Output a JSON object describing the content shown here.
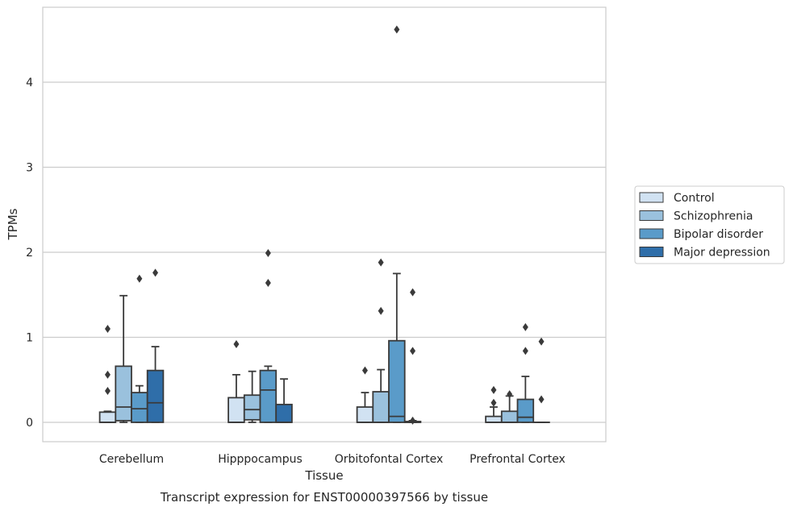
{
  "chart_data": {
    "type": "boxplot",
    "title": "",
    "caption": "Transcript expression for ENST00000397566 by tissue",
    "xlabel": "Tissue",
    "ylabel": "TPMs",
    "ylim": [
      -0.22,
      4.87
    ],
    "yticks": [
      0,
      1,
      2,
      3,
      4
    ],
    "grid": "horizontal",
    "legend_position": "right",
    "categories": [
      "Cerebellum",
      "Hipppocampus",
      "Orbitofontal Cortex",
      "Prefrontal Cortex"
    ],
    "series": [
      {
        "name": "Control",
        "color": "#d1e2f2",
        "boxes": [
          {
            "q1": 0.0,
            "median": 0.0,
            "q3": 0.12,
            "whisker_low": 0.0,
            "whisker_high": 0.13,
            "outliers": [
              0.37,
              0.56,
              1.1
            ]
          },
          {
            "q1": 0.0,
            "median": 0.0,
            "q3": 0.29,
            "whisker_low": 0.0,
            "whisker_high": 0.56,
            "outliers": [
              0.92
            ]
          },
          {
            "q1": 0.0,
            "median": 0.0,
            "q3": 0.18,
            "whisker_low": 0.0,
            "whisker_high": 0.35,
            "outliers": [
              0.61
            ]
          },
          {
            "q1": 0.0,
            "median": 0.0,
            "q3": 0.07,
            "whisker_low": 0.0,
            "whisker_high": 0.18,
            "outliers": [
              0.23,
              0.38
            ]
          }
        ]
      },
      {
        "name": "Schizophrenia",
        "color": "#9ac1dd",
        "boxes": [
          {
            "q1": 0.02,
            "median": 0.18,
            "q3": 0.66,
            "whisker_low": 0.0,
            "whisker_high": 1.49,
            "outliers": []
          },
          {
            "q1": 0.03,
            "median": 0.15,
            "q3": 0.32,
            "whisker_low": 0.0,
            "whisker_high": 0.6,
            "outliers": []
          },
          {
            "q1": 0.0,
            "median": 0.0,
            "q3": 0.36,
            "whisker_low": 0.0,
            "whisker_high": 0.62,
            "outliers": [
              1.31,
              1.88
            ]
          },
          {
            "q1": 0.0,
            "median": 0.0,
            "q3": 0.13,
            "whisker_low": 0.0,
            "whisker_high": 0.31,
            "outliers": [
              0.33
            ]
          }
        ]
      },
      {
        "name": "Bipolar disorder",
        "color": "#5a9bc9",
        "boxes": [
          {
            "q1": 0.0,
            "median": 0.16,
            "q3": 0.35,
            "whisker_low": 0.0,
            "whisker_high": 0.43,
            "outliers": [
              1.69
            ]
          },
          {
            "q1": 0.0,
            "median": 0.38,
            "q3": 0.61,
            "whisker_low": 0.0,
            "whisker_high": 0.66,
            "outliers": [
              1.64,
              1.99
            ]
          },
          {
            "q1": 0.0,
            "median": 0.07,
            "q3": 0.96,
            "whisker_low": 0.0,
            "whisker_high": 1.75,
            "outliers": [
              4.62
            ]
          },
          {
            "q1": 0.0,
            "median": 0.06,
            "q3": 0.27,
            "whisker_low": 0.0,
            "whisker_high": 0.54,
            "outliers": [
              0.84,
              1.12
            ]
          }
        ]
      },
      {
        "name": "Major depression",
        "color": "#2f6ea9",
        "boxes": [
          {
            "q1": 0.0,
            "median": 0.23,
            "q3": 0.61,
            "whisker_low": 0.0,
            "whisker_high": 0.89,
            "outliers": [
              1.76
            ]
          },
          {
            "q1": 0.0,
            "median": 0.0,
            "q3": 0.21,
            "whisker_low": 0.0,
            "whisker_high": 0.51,
            "outliers": []
          },
          {
            "q1": 0.0,
            "median": 0.0,
            "q3": 0.01,
            "whisker_low": 0.0,
            "whisker_high": 0.02,
            "outliers": [
              0.02,
              0.84,
              1.53
            ]
          },
          {
            "q1": 0.0,
            "median": 0.0,
            "q3": 0.0,
            "whisker_low": 0.0,
            "whisker_high": 0.0,
            "outliers": [
              0.27,
              0.95
            ]
          }
        ]
      }
    ]
  }
}
